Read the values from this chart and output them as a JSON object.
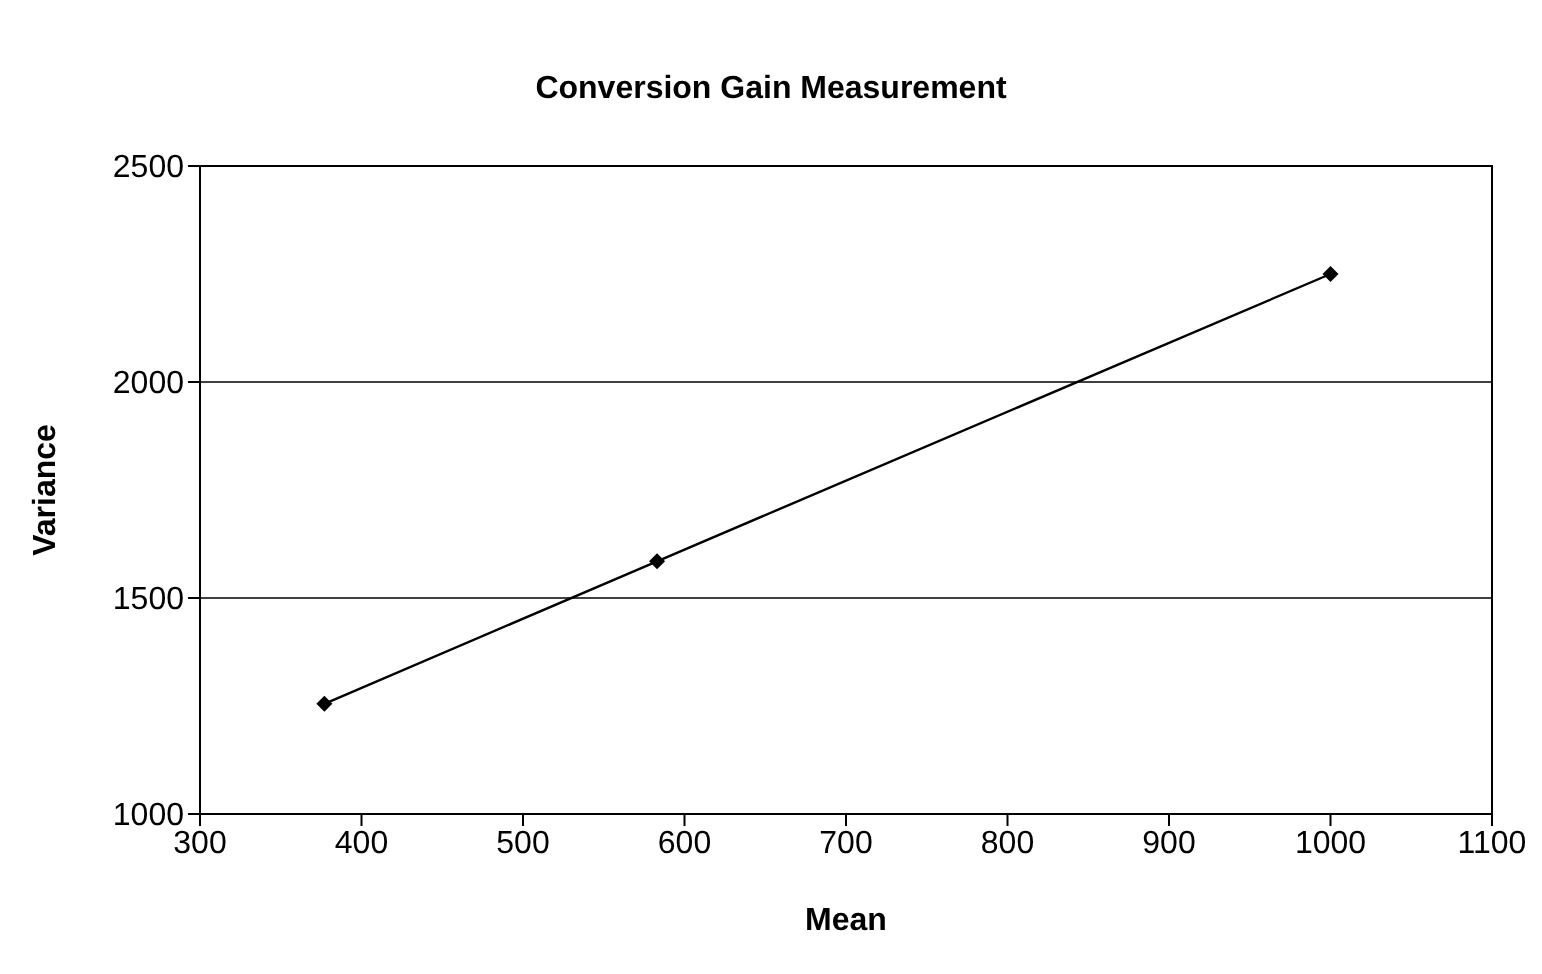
{
  "chart_data": {
    "type": "line",
    "title": "Conversion Gain Measurement",
    "xlabel": "Mean",
    "ylabel": "Variance",
    "x": [
      377,
      583,
      1000
    ],
    "series": [
      {
        "color": "#000000",
        "values": [
          1255,
          1585,
          2250
        ]
      }
    ],
    "xlim": [
      300,
      1100
    ],
    "xticks": [
      300,
      400,
      500,
      600,
      700,
      800,
      900,
      1000,
      1100
    ],
    "ylim": [
      1000,
      2500
    ],
    "yticks": [
      1000,
      1500,
      2000,
      2500
    ],
    "grid": "y",
    "legend": false,
    "marker": "diamond",
    "line_style": "solid"
  }
}
